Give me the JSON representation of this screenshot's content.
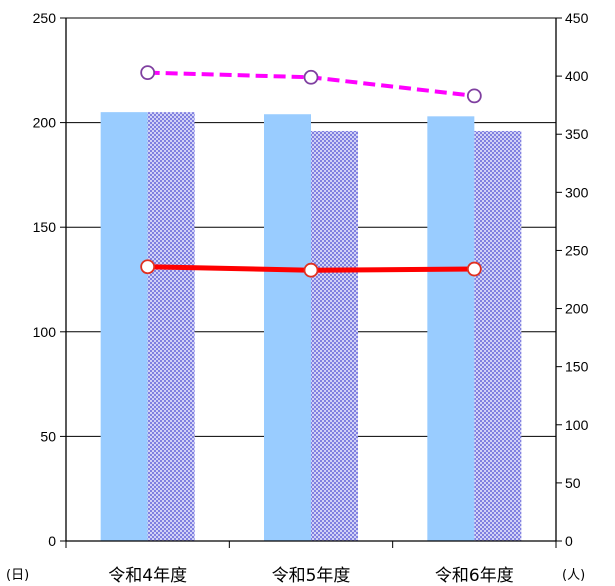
{
  "chart_data": {
    "type": "bar",
    "categories": [
      "令和4年度",
      "令和5年度",
      "令和6年度"
    ],
    "y_left": {
      "unit_label": "(日)",
      "ylim": [
        0,
        250
      ],
      "ticks": [
        0,
        50,
        100,
        150,
        200,
        250
      ]
    },
    "y_right": {
      "unit_label": "(人)",
      "ylim": [
        0,
        450
      ],
      "ticks": [
        0,
        50,
        100,
        150,
        200,
        250,
        300,
        350,
        400,
        450
      ]
    },
    "grid": true,
    "legend": "none",
    "bar_series": [
      {
        "values": [
          205,
          204,
          203
        ],
        "axis": "left",
        "color": "#99ccff",
        "pattern": "solid"
      },
      {
        "values": [
          205,
          196,
          196
        ],
        "axis": "left",
        "color": "#9999ee",
        "pattern": "dotted"
      }
    ],
    "line_series": [
      {
        "values": [
          403,
          399,
          383
        ],
        "axis": "right",
        "color": "#ff00ff",
        "style": "dashed",
        "marker": "open-circle-purple"
      },
      {
        "values": [
          236,
          233,
          234
        ],
        "axis": "right",
        "color": "#ff0000",
        "style": "solid",
        "marker": "open-circle-red"
      }
    ]
  }
}
